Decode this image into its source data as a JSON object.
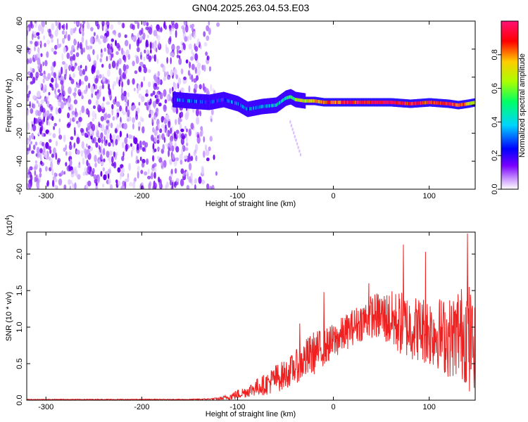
{
  "title": "GN04.2025.263.04.53.E03",
  "colors": {
    "snr_line": "#ee2020",
    "spectrogram_scale": [
      "#ffffff",
      "#cc99ff",
      "#7a00ff",
      "#0000ff",
      "#00d5ff",
      "#00ff66",
      "#aaff00",
      "#ffcc00",
      "#ff0000",
      "#ff1177"
    ]
  },
  "chart_data": [
    {
      "type": "heatmap",
      "xlabel": "Height of straight line (km)",
      "ylabel": "Frequency (Hz)",
      "xlim": [
        -320,
        148
      ],
      "ylim": [
        -60,
        60
      ],
      "xticks": [
        -300,
        -200,
        -100,
        0,
        100
      ],
      "yticks": [
        -60,
        -40,
        -20,
        0,
        20,
        40,
        60
      ],
      "grid": false,
      "colorbar": {
        "label": "Normalized spectral amplitude",
        "range": [
          0.0,
          1.0
        ],
        "ticks": [
          0.0,
          0.2,
          0.4,
          0.6,
          0.8
        ]
      },
      "noise_region": {
        "x": [
          -320,
          -130
        ],
        "frequency": [
          -60,
          60
        ],
        "amplitude": 0.1
      },
      "signal_track": {
        "x": [
          -168,
          -150,
          -130,
          -115,
          -100,
          -90,
          -75,
          -60,
          -50,
          -45,
          -40,
          -30,
          -20,
          -10,
          0,
          20,
          40,
          60,
          80,
          100,
          120,
          130,
          140,
          148
        ],
        "frequency": [
          4,
          3,
          2,
          4,
          1,
          -3,
          -1,
          0,
          5,
          6,
          4,
          3,
          3,
          2,
          2,
          2,
          2,
          2,
          1,
          2,
          1,
          0,
          1,
          2
        ],
        "amplitude": [
          0.25,
          0.3,
          0.2,
          0.25,
          0.3,
          0.3,
          0.35,
          0.4,
          0.45,
          0.5,
          0.6,
          0.7,
          0.75,
          0.8,
          0.85,
          0.9,
          0.95,
          0.95,
          0.9,
          0.9,
          0.9,
          0.85,
          0.75,
          0.7
        ]
      }
    },
    {
      "type": "line",
      "xlabel": "Height of straight line (km)",
      "ylabel": "SNR (10 * v/v)",
      "y_multiplier": "(x10",
      "y_multiplier_exp": "4",
      "y_multiplier_close": ")",
      "xlim": [
        -320,
        148
      ],
      "ylim": [
        0.0,
        2.3
      ],
      "xticks": [
        -300,
        -200,
        -100,
        0,
        100
      ],
      "yticks": [
        "0.0",
        "0.5",
        "1.0",
        "1.5",
        "2.0"
      ],
      "grid": false,
      "series": [
        {
          "x": [
            -320,
            -300,
            -250,
            -200,
            -150,
            -130,
            -120,
            -110,
            -100,
            -90,
            -80,
            -70,
            -60,
            -50,
            -40,
            -30,
            -20,
            -10,
            0,
            10,
            20,
            30,
            40,
            50,
            60,
            70,
            80,
            90,
            100,
            110,
            120,
            130,
            140,
            148
          ],
          "mean": [
            0.01,
            0.01,
            0.01,
            0.01,
            0.01,
            0.015,
            0.02,
            0.04,
            0.08,
            0.12,
            0.18,
            0.22,
            0.3,
            0.35,
            0.45,
            0.55,
            0.65,
            0.72,
            0.8,
            0.9,
            1.0,
            1.08,
            1.15,
            1.15,
            1.1,
            1.05,
            1.0,
            0.98,
            0.95,
            0.92,
            0.85,
            0.9,
            0.95,
            0.7
          ],
          "spread": [
            0.005,
            0.005,
            0.005,
            0.005,
            0.005,
            0.01,
            0.02,
            0.04,
            0.07,
            0.08,
            0.12,
            0.15,
            0.2,
            0.2,
            0.22,
            0.28,
            0.3,
            0.25,
            0.25,
            0.25,
            0.25,
            0.27,
            0.3,
            0.35,
            0.4,
            0.45,
            0.45,
            0.45,
            0.5,
            0.5,
            0.55,
            0.6,
            0.75,
            0.55
          ],
          "peaks": [
            {
              "x": -10,
              "y": 1.48
            },
            {
              "x": -35,
              "y": 1.05
            },
            {
              "x": 37,
              "y": 1.6
            },
            {
              "x": 73,
              "y": 2.13
            },
            {
              "x": 96,
              "y": 2.03
            },
            {
              "x": 130,
              "y": 1.45
            },
            {
              "x": 140,
              "y": 2.28
            },
            {
              "x": 142,
              "y": 0.12
            }
          ]
        }
      ]
    }
  ]
}
